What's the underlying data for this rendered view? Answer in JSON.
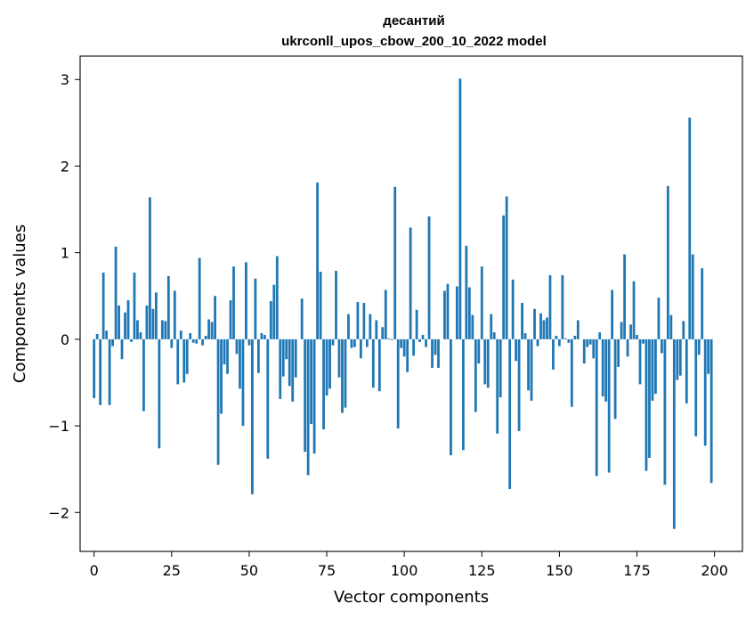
{
  "chart_data": {
    "type": "bar",
    "title_line1": "десантий",
    "title_line2": "ukrconll_upos_cbow_200_10_2022 model",
    "xlabel": "Vector components",
    "ylabel": "Components values",
    "xlim": [
      -4.5,
      209
    ],
    "ylim": [
      -2.45,
      3.27
    ],
    "x_ticks": [
      0,
      25,
      50,
      75,
      100,
      125,
      150,
      175,
      200
    ],
    "x_tick_labels": [
      "0",
      "25",
      "50",
      "75",
      "100",
      "125",
      "150",
      "175",
      "200"
    ],
    "y_ticks": [
      -2,
      -1,
      0,
      1,
      2,
      3
    ],
    "y_tick_labels": [
      "−2",
      "−1",
      "0",
      "1",
      "2",
      "3"
    ],
    "bar_color": "#1f77b4",
    "grid": false,
    "x": [
      0,
      1,
      2,
      3,
      4,
      5,
      6,
      7,
      8,
      9,
      10,
      11,
      12,
      13,
      14,
      15,
      16,
      17,
      18,
      19,
      20,
      21,
      22,
      23,
      24,
      25,
      26,
      27,
      28,
      29,
      30,
      31,
      32,
      33,
      34,
      35,
      36,
      37,
      38,
      39,
      40,
      41,
      42,
      43,
      44,
      45,
      46,
      47,
      48,
      49,
      50,
      51,
      52,
      53,
      54,
      55,
      56,
      57,
      58,
      59,
      60,
      61,
      62,
      63,
      64,
      65,
      66,
      67,
      68,
      69,
      70,
      71,
      72,
      73,
      74,
      75,
      76,
      77,
      78,
      79,
      80,
      81,
      82,
      83,
      84,
      85,
      86,
      87,
      88,
      89,
      90,
      91,
      92,
      93,
      94,
      95,
      96,
      97,
      98,
      99,
      100,
      101,
      102,
      103,
      104,
      105,
      106,
      107,
      108,
      109,
      110,
      111,
      112,
      113,
      114,
      115,
      116,
      117,
      118,
      119,
      120,
      121,
      122,
      123,
      124,
      125,
      126,
      127,
      128,
      129,
      130,
      131,
      132,
      133,
      134,
      135,
      136,
      137,
      138,
      139,
      140,
      141,
      142,
      143,
      144,
      145,
      146,
      147,
      148,
      149,
      150,
      151,
      152,
      153,
      154,
      155,
      156,
      157,
      158,
      159,
      160,
      161,
      162,
      163,
      164,
      165,
      166,
      167,
      168,
      169,
      170,
      171,
      172,
      173,
      174,
      175,
      176,
      177,
      178,
      179,
      180,
      181,
      182,
      183,
      184,
      185,
      186,
      187,
      188,
      189,
      190,
      191,
      192,
      193,
      194,
      195,
      196,
      197,
      198,
      199
    ],
    "values": [
      -0.68,
      0.06,
      -0.76,
      0.77,
      0.1,
      -0.76,
      -0.08,
      1.07,
      0.39,
      -0.23,
      0.31,
      0.45,
      -0.03,
      0.77,
      0.22,
      0.08,
      -0.83,
      0.39,
      1.64,
      0.35,
      0.54,
      -1.26,
      0.22,
      0.21,
      0.73,
      -0.1,
      0.56,
      -0.52,
      0.1,
      -0.5,
      -0.4,
      0.07,
      -0.04,
      -0.05,
      0.94,
      -0.07,
      0.04,
      0.23,
      0.2,
      0.5,
      -1.45,
      -0.86,
      -0.29,
      -0.4,
      0.45,
      0.84,
      -0.17,
      -0.57,
      -1.0,
      0.89,
      -0.07,
      -1.79,
      0.7,
      -0.39,
      0.07,
      0.05,
      -1.38,
      0.44,
      0.63,
      0.96,
      -0.69,
      -0.43,
      -0.23,
      -0.54,
      -0.72,
      -0.44,
      0.0,
      0.47,
      -1.3,
      -1.57,
      -0.98,
      -1.32,
      1.81,
      0.78,
      -1.04,
      -0.65,
      -0.57,
      -0.07,
      0.79,
      -0.44,
      -0.85,
      -0.79,
      0.29,
      -0.1,
      -0.09,
      0.43,
      -0.22,
      0.42,
      -0.09,
      0.29,
      -0.56,
      0.22,
      -0.6,
      0.14,
      0.57,
      0.01,
      -0.01,
      1.76,
      -1.03,
      -0.1,
      -0.2,
      -0.38,
      1.29,
      -0.19,
      0.34,
      -0.03,
      0.05,
      -0.09,
      1.42,
      -0.33,
      -0.18,
      -0.33,
      0.0,
      0.56,
      0.64,
      -1.34,
      0.0,
      0.61,
      3.01,
      -1.28,
      1.08,
      0.6,
      0.28,
      -0.84,
      -0.28,
      0.84,
      -0.52,
      -0.56,
      0.29,
      0.08,
      -1.09,
      -0.67,
      1.43,
      1.65,
      -1.73,
      0.69,
      -0.25,
      -1.06,
      0.42,
      0.07,
      -0.59,
      -0.71,
      0.35,
      -0.08,
      0.3,
      0.22,
      0.25,
      0.74,
      -0.35,
      0.04,
      -0.08,
      0.74,
      0.01,
      -0.04,
      -0.78,
      0.04,
      0.22,
      0.0,
      -0.28,
      -0.09,
      -0.06,
      -0.22,
      -1.58,
      0.08,
      -0.66,
      -0.72,
      -1.54,
      0.57,
      -0.92,
      -0.32,
      0.2,
      0.98,
      -0.2,
      0.17,
      0.67,
      0.05,
      -0.52,
      -0.05,
      -1.52,
      -1.37,
      -0.71,
      -0.63,
      0.48,
      -0.16,
      -1.68,
      1.77,
      0.28,
      -2.19,
      -0.47,
      -0.42,
      0.21,
      -0.74,
      2.56,
      0.98,
      -1.12,
      -0.18,
      0.82,
      -1.23,
      -0.4,
      -1.66
    ]
  }
}
